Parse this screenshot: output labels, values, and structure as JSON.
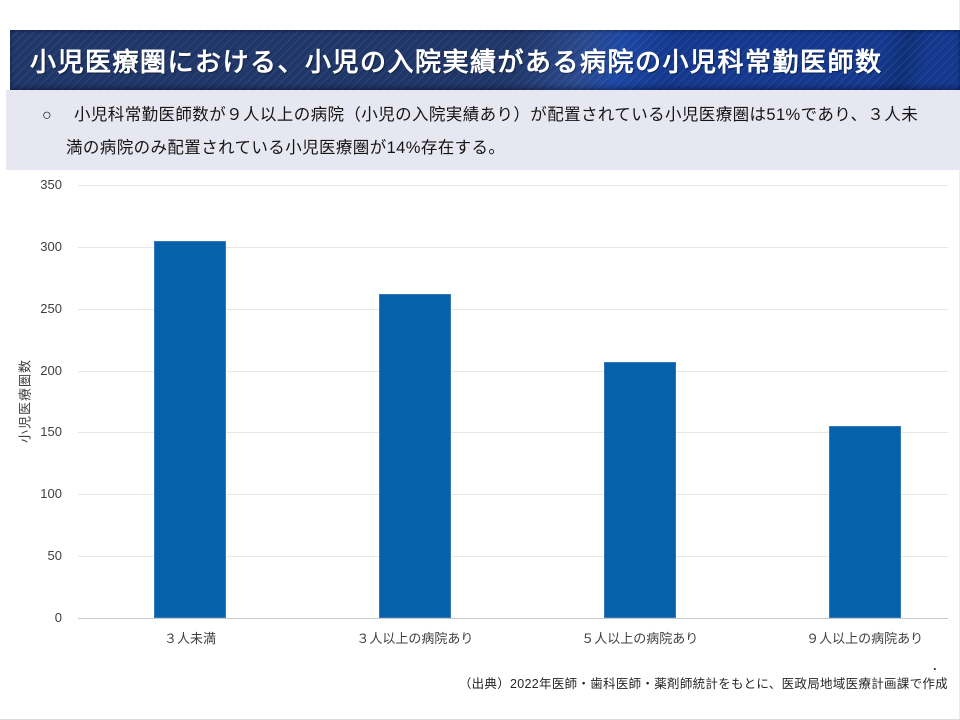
{
  "header": {
    "title": "小児医療圏における、小児の入院実績がある病院の小児科常勤医師数"
  },
  "summary": {
    "bullet": "○",
    "text": "小児科常勤医師数が９人以上の病院（小児の入院実績あり）が配置されている小児医療圏は51%であり、３人未満の病院のみ配置されている小児医療圏が14%存在する。",
    "lines": [
      "小児科常勤医師数が９人以上の病院（小児の入院実績あり）が配置されている小児医療圏は51%であり、３人未",
      "満の病院のみ配置されている小児医療圏が14%存在する。"
    ]
  },
  "chart_data": {
    "type": "bar",
    "title": "",
    "categories": [
      "３人未満",
      "３人以上の病院あり",
      "５人以上の病院あり",
      "９人以上の病院あり"
    ],
    "values": [
      305,
      262,
      207,
      155
    ],
    "xlabel": "",
    "ylabel": "小児医療圏数",
    "ylim": [
      0,
      350
    ],
    "ytick_step": 50,
    "grid": true,
    "legend": false,
    "bar_color": "#0561aa"
  },
  "footer": {
    "source": "（出典）2022年医師・歯科医師・薬剤師統計をもとに、医政局地域医療計画課で作成",
    "stray_mark": "."
  },
  "colors": {
    "header_navy": "#20376a",
    "header_blue": "#14398f",
    "summary_bg": "#e7e7f1",
    "bar": "#0561aa",
    "gridline": "#e6e6e6",
    "axis_line": "#c9c9c9",
    "text": "#151515",
    "tick_text": "#404040"
  }
}
